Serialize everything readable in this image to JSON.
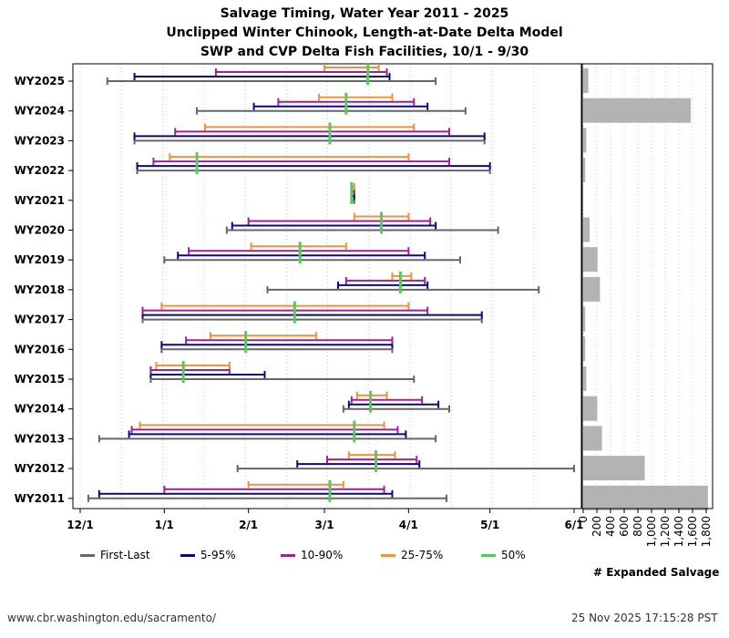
{
  "title": {
    "line1": "Salvage Timing, Water Year 2011 - 2025",
    "line2": "Unclipped Winter Chinook, Length-at-Date Delta Model",
    "line3": "SWP and CVP Delta Fish Facilities, 10/1 - 9/30"
  },
  "legend": [
    {
      "key": "first_last",
      "label": "First-Last",
      "color": "#666666"
    },
    {
      "key": "p5_95",
      "label": "5-95%",
      "color": "#0a0a80"
    },
    {
      "key": "p10_90",
      "label": "10-90%",
      "color": "#a0209a"
    },
    {
      "key": "p25_75",
      "label": "25-75%",
      "color": "#f0913c"
    },
    {
      "key": "p50",
      "label": "50%",
      "color": "#5ac85a"
    }
  ],
  "footer": {
    "url": "www.cbr.washington.edu/sacramento/",
    "timestamp": "25 Nov 2025 17:15:28 PST"
  },
  "chart_data": [
    {
      "type": "range",
      "description": "Days since 12/1 for each percentile window",
      "x_ticks": [
        {
          "label": "12/1",
          "day": 0
        },
        {
          "label": "1/1",
          "day": 31
        },
        {
          "label": "2/1",
          "day": 62
        },
        {
          "label": "3/1",
          "day": 90
        },
        {
          "label": "4/1",
          "day": 121
        },
        {
          "label": "5/1",
          "day": 151
        },
        {
          "label": "6/1",
          "day": 182
        }
      ],
      "xlim": [
        0,
        182
      ],
      "years": [
        {
          "label": "WY2025",
          "first_last": [
            10,
            131
          ],
          "p5_95": [
            20,
            114
          ],
          "p10_90": [
            50,
            113
          ],
          "p25_75": [
            90,
            110
          ],
          "p50": 106
        },
        {
          "label": "WY2024",
          "first_last": [
            43,
            142
          ],
          "p5_95": [
            64,
            128
          ],
          "p10_90": [
            73,
            123
          ],
          "p25_75": [
            88,
            115
          ],
          "p50": 98
        },
        {
          "label": "WY2023",
          "first_last": [
            20,
            149
          ],
          "p5_95": [
            20,
            149
          ],
          "p10_90": [
            35,
            136
          ],
          "p25_75": [
            46,
            123
          ],
          "p50": 92
        },
        {
          "label": "WY2022",
          "first_last": [
            21,
            151
          ],
          "p5_95": [
            21,
            151
          ],
          "p10_90": [
            27,
            136
          ],
          "p25_75": [
            33,
            121
          ],
          "p50": 43
        },
        {
          "label": "WY2021",
          "first_last": [
            100,
            101
          ],
          "p5_95": [
            100,
            101
          ],
          "p10_90": [
            100,
            101
          ],
          "p25_75": [
            100,
            101
          ],
          "p50": 100
        },
        {
          "label": "WY2020",
          "first_last": [
            54,
            154
          ],
          "p5_95": [
            56,
            131
          ],
          "p10_90": [
            62,
            129
          ],
          "p25_75": [
            101,
            121
          ],
          "p50": 111
        },
        {
          "label": "WY2019",
          "first_last": [
            31,
            140
          ],
          "p5_95": [
            36,
            127
          ],
          "p10_90": [
            40,
            121
          ],
          "p25_75": [
            63,
            98
          ],
          "p50": 81
        },
        {
          "label": "WY2018",
          "first_last": [
            69,
            169
          ],
          "p5_95": [
            95,
            128
          ],
          "p10_90": [
            98,
            127
          ],
          "p25_75": [
            115,
            122
          ],
          "p50": 118
        },
        {
          "label": "WY2017",
          "first_last": [
            23,
            148
          ],
          "p5_95": [
            23,
            148
          ],
          "p10_90": [
            23,
            128
          ],
          "p25_75": [
            30,
            121
          ],
          "p50": 79
        },
        {
          "label": "WY2016",
          "first_last": [
            30,
            115
          ],
          "p5_95": [
            30,
            115
          ],
          "p10_90": [
            39,
            115
          ],
          "p25_75": [
            48,
            87
          ],
          "p50": 61
        },
        {
          "label": "WY2015",
          "first_last": [
            26,
            123
          ],
          "p5_95": [
            26,
            68
          ],
          "p10_90": [
            26,
            55
          ],
          "p25_75": [
            28,
            55
          ],
          "p50": 38
        },
        {
          "label": "WY2014",
          "first_last": [
            97,
            136
          ],
          "p5_95": [
            99,
            132
          ],
          "p10_90": [
            100,
            126
          ],
          "p25_75": [
            102,
            113
          ],
          "p50": 107
        },
        {
          "label": "WY2013",
          "first_last": [
            7,
            131
          ],
          "p5_95": [
            18,
            120
          ],
          "p10_90": [
            19,
            117
          ],
          "p25_75": [
            22,
            112
          ],
          "p50": 101
        },
        {
          "label": "WY2012",
          "first_last": [
            58,
            182
          ],
          "p5_95": [
            80,
            125
          ],
          "p10_90": [
            91,
            124
          ],
          "p25_75": [
            99,
            116
          ],
          "p50": 109
        },
        {
          "label": "WY2011",
          "first_last": [
            3,
            135
          ],
          "p5_95": [
            7,
            115
          ],
          "p10_90": [
            31,
            112
          ],
          "p25_75": [
            62,
            97
          ],
          "p50": 92
        }
      ]
    },
    {
      "type": "bar",
      "orientation": "horizontal",
      "categories": [
        "WY2025",
        "WY2024",
        "WY2023",
        "WY2022",
        "WY2021",
        "WY2020",
        "WY2019",
        "WY2018",
        "WY2017",
        "WY2016",
        "WY2015",
        "WY2014",
        "WY2013",
        "WY2012",
        "WY2011"
      ],
      "values": [
        75,
        1575,
        45,
        30,
        0,
        95,
        210,
        245,
        30,
        30,
        45,
        205,
        275,
        900,
        1825
      ],
      "xlabel": "# Expanded Salvage",
      "xlim": [
        0,
        1900
      ],
      "tick_labels": [
        "0",
        "200",
        "400",
        "600",
        "800",
        "1,000",
        "1,200",
        "1,400",
        "1,600",
        "1,800"
      ],
      "tick_values": [
        0,
        200,
        400,
        600,
        800,
        1000,
        1200,
        1400,
        1600,
        1800
      ]
    }
  ]
}
